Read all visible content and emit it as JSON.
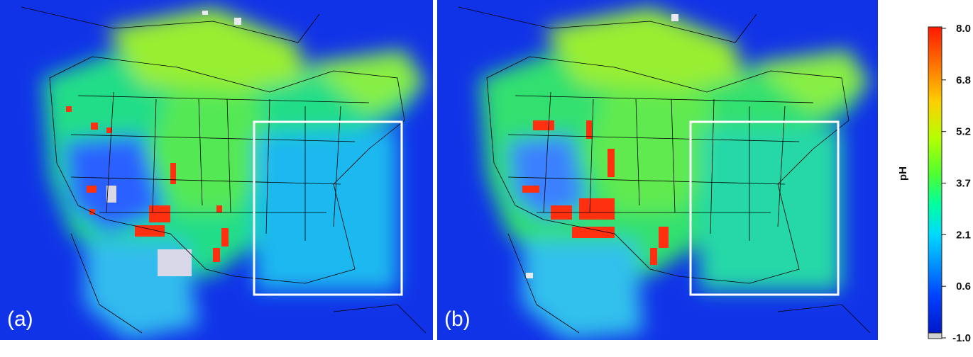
{
  "panels": [
    {
      "id": "a",
      "label": "(a)"
    },
    {
      "id": "b",
      "label": "(b)"
    }
  ],
  "colorbar": {
    "title": "pH",
    "ticks": [
      "8.0",
      "6.8",
      "5.2",
      "3.7",
      "2.1",
      "0.6",
      "-1.0"
    ],
    "colors": [
      "#ff2000",
      "#ff8000",
      "#ffd000",
      "#c8ff00",
      "#40ff40",
      "#00ffb0",
      "#00e0ff",
      "#0080ff",
      "#0030ff",
      "#0010c0"
    ]
  }
}
